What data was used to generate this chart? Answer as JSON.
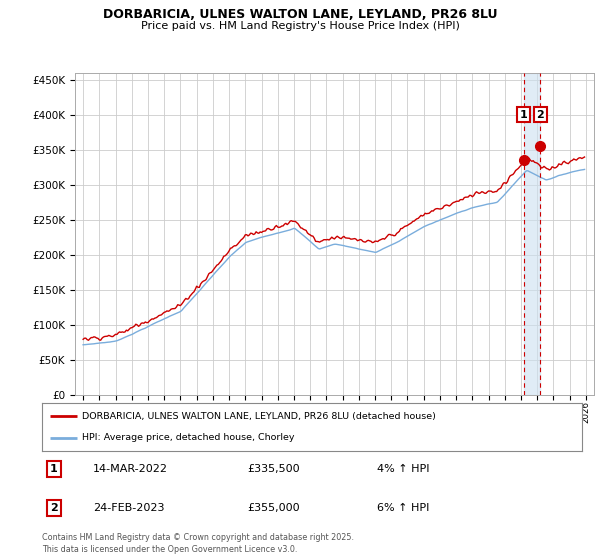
{
  "title": "DORBARICIA, ULNES WALTON LANE, LEYLAND, PR26 8LU",
  "subtitle": "Price paid vs. HM Land Registry's House Price Index (HPI)",
  "legend_entry1": "DORBARICIA, ULNES WALTON LANE, LEYLAND, PR26 8LU (detached house)",
  "legend_entry2": "HPI: Average price, detached house, Chorley",
  "annotation1_num": "1",
  "annotation1_date": "14-MAR-2022",
  "annotation1_price": "£335,500",
  "annotation1_pct": "4% ↑ HPI",
  "annotation2_num": "2",
  "annotation2_date": "24-FEB-2023",
  "annotation2_price": "£355,000",
  "annotation2_pct": "6% ↑ HPI",
  "footer": "Contains HM Land Registry data © Crown copyright and database right 2025.\nThis data is licensed under the Open Government Licence v3.0.",
  "ylim": [
    0,
    460000
  ],
  "yticks": [
    0,
    50000,
    100000,
    150000,
    200000,
    250000,
    300000,
    350000,
    400000,
    450000
  ],
  "line1_color": "#cc0000",
  "line2_color": "#7aaddc",
  "grid_color": "#cccccc",
  "bg_color": "#ffffff",
  "marker1_year": 2022.21,
  "marker1_value": 335500,
  "marker2_year": 2023.15,
  "marker2_value": 355000,
  "vline1_year": 2022.21,
  "vline2_year": 2023.15,
  "xstart": 1995,
  "xend": 2026
}
